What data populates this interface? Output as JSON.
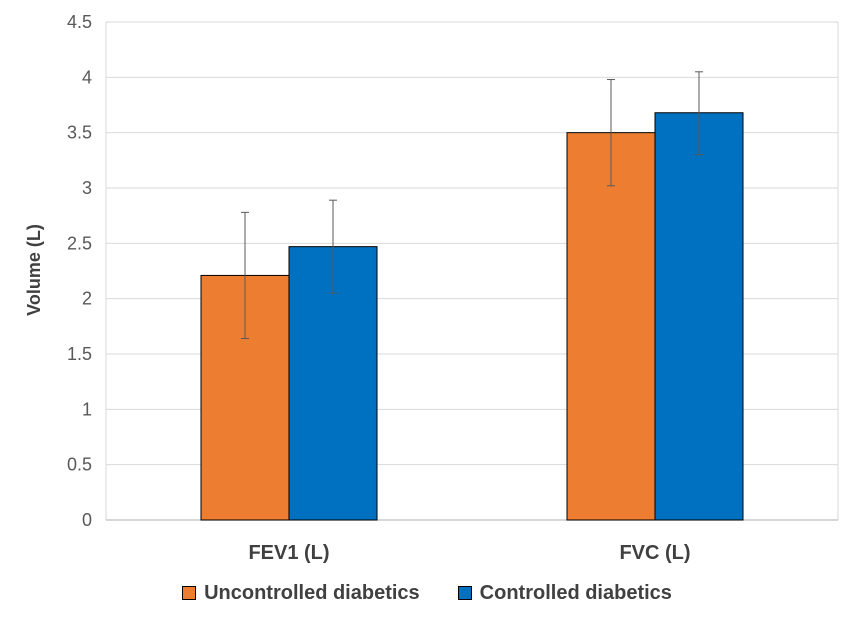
{
  "chart_data": {
    "type": "bar",
    "title": "",
    "xlabel": "",
    "ylabel": "Volume (L)",
    "ylim": [
      0,
      4.5
    ],
    "yticks": [
      0,
      0.5,
      1,
      1.5,
      2,
      2.5,
      3,
      3.5,
      4,
      4.5
    ],
    "ytick_labels": [
      "0",
      "0.5",
      "1",
      "1.5",
      "2",
      "2.5",
      "3",
      "3.5",
      "4",
      "4.5"
    ],
    "grid": true,
    "legend_position": "bottom",
    "categories": [
      "FEV1 (L)",
      "FVC (L)"
    ],
    "series": [
      {
        "name": "Uncontrolled diabetics",
        "color": "#ED7D31",
        "values": [
          2.21,
          3.5
        ],
        "error_low": [
          1.64,
          3.02
        ],
        "error_high": [
          2.78,
          3.98
        ]
      },
      {
        "name": "Controlled diabetics",
        "color": "#0070C0",
        "values": [
          2.47,
          3.68
        ],
        "error_low": [
          2.05,
          3.3
        ],
        "error_high": [
          2.89,
          4.05
        ]
      }
    ]
  }
}
